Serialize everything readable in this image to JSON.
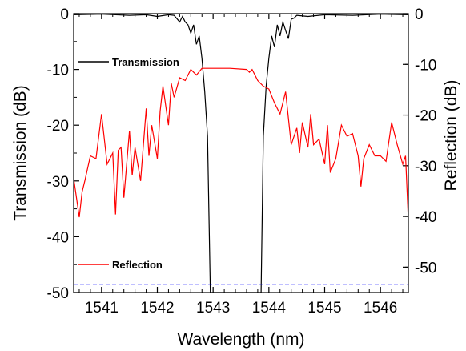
{
  "chart_data": {
    "type": "line",
    "xlabel": "Wavelength (nm)",
    "ylabel_left": "Transmission (dB)",
    "ylabel_right": "Reflection (dB)",
    "xlim": [
      1540.5,
      1546.5
    ],
    "ylim_left": [
      -50,
      0
    ],
    "ylim_right": [
      -55,
      0
    ],
    "x_ticks": [
      1541,
      1542,
      1543,
      1544,
      1545,
      1546
    ],
    "y_ticks_left": [
      0,
      -10,
      -20,
      -30,
      -40,
      -50
    ],
    "y_ticks_right": [
      0,
      -10,
      -20,
      -30,
      -40,
      -50
    ],
    "grid": false,
    "legend": [
      {
        "name": "Transmission",
        "color": "#000000",
        "position": "upper-left"
      },
      {
        "name": "Reflection",
        "color": "#ff0000",
        "position": "lower-left"
      }
    ],
    "series": [
      {
        "name": "Transmission",
        "axis": "left",
        "color": "#000000",
        "x": [
          1540.5,
          1541.0,
          1541.5,
          1541.8,
          1542.0,
          1542.2,
          1542.3,
          1542.4,
          1542.45,
          1542.5,
          1542.55,
          1542.6,
          1542.65,
          1542.7,
          1542.75,
          1542.8,
          1542.85,
          1542.9,
          1542.95,
          1543.86,
          1543.9,
          1543.95,
          1544.0,
          1544.05,
          1544.1,
          1544.15,
          1544.2,
          1544.25,
          1544.3,
          1544.35,
          1544.4,
          1544.45,
          1544.5,
          1544.7,
          1545.0,
          1545.5,
          1546.0,
          1546.5
        ],
        "values": [
          -0.2,
          -0.1,
          -0.3,
          -0.2,
          -0.5,
          -0.2,
          -0.3,
          -1.5,
          -0.5,
          -1.5,
          -2.0,
          -3.5,
          -2.0,
          -5.5,
          -4.0,
          -8.0,
          -14.0,
          -22.0,
          -50.0,
          -50.0,
          -22.0,
          -13.0,
          -8.0,
          -4.0,
          -6.0,
          -2.0,
          -4.0,
          -1.5,
          -3.0,
          -4.5,
          -1.0,
          -0.8,
          -0.3,
          -0.5,
          -0.2,
          -0.3,
          -0.1,
          -0.2
        ]
      },
      {
        "name": "Reflection",
        "axis": "left",
        "color": "#ff0000",
        "x": [
          1540.5,
          1540.6,
          1540.65,
          1540.7,
          1540.8,
          1540.9,
          1541.0,
          1541.1,
          1541.2,
          1541.25,
          1541.3,
          1541.35,
          1541.4,
          1541.5,
          1541.55,
          1541.6,
          1541.7,
          1541.8,
          1541.85,
          1541.9,
          1542.0,
          1542.05,
          1542.1,
          1542.2,
          1542.25,
          1542.3,
          1542.4,
          1542.5,
          1542.6,
          1542.7,
          1542.8,
          1543.0,
          1543.3,
          1543.6,
          1543.65,
          1543.7,
          1543.8,
          1543.9,
          1544.0,
          1544.1,
          1544.2,
          1544.3,
          1544.4,
          1544.5,
          1544.55,
          1544.6,
          1544.7,
          1544.75,
          1544.8,
          1544.9,
          1545.0,
          1545.05,
          1545.1,
          1545.2,
          1545.3,
          1545.4,
          1545.5,
          1545.6,
          1545.65,
          1545.7,
          1545.8,
          1545.9,
          1546.0,
          1546.1,
          1546.2,
          1546.3,
          1546.4,
          1546.45,
          1546.5
        ],
        "values": [
          -29.5,
          -36.5,
          -32.0,
          -30.0,
          -25.5,
          -26.0,
          -18.0,
          -27.0,
          -25.0,
          -36.0,
          -24.5,
          -24.0,
          -33.0,
          -21.0,
          -29.0,
          -24.0,
          -30.0,
          -17.0,
          -25.5,
          -20.0,
          -26.0,
          -17.5,
          -13.0,
          -20.0,
          -12.5,
          -15.0,
          -11.5,
          -12.0,
          -10.0,
          -11.0,
          -9.8,
          -9.8,
          -9.8,
          -10.0,
          -10.5,
          -10.0,
          -12.0,
          -13.0,
          -13.5,
          -16.0,
          -18.0,
          -14.0,
          -23.5,
          -20.5,
          -25.0,
          -19.5,
          -24.0,
          -18.0,
          -23.5,
          -22.5,
          -27.0,
          -20.0,
          -28.5,
          -26.0,
          -20.0,
          -22.0,
          -21.5,
          -25.5,
          -31.0,
          -26.0,
          -23.5,
          -25.5,
          -25.5,
          -26.5,
          -19.5,
          -23.5,
          -27.0,
          -25.5,
          -37.0
        ]
      },
      {
        "name": "",
        "axis": "left",
        "color": "#0000ff",
        "style": "dashed",
        "x": [
          1540.5,
          1546.5
        ],
        "values": [
          -48.5,
          -48.5
        ]
      }
    ]
  }
}
